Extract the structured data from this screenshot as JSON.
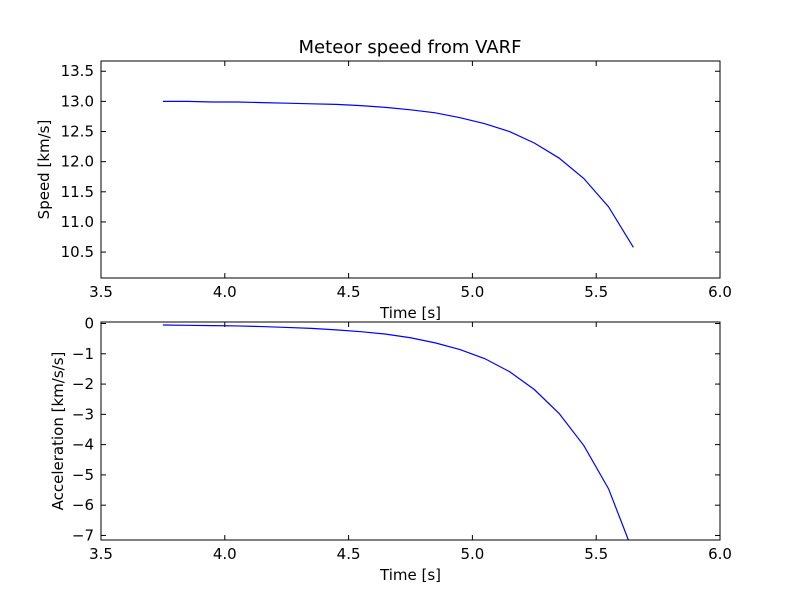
{
  "figure": {
    "title": "Meteor speed from  VARF"
  },
  "colors": {
    "line": "#0000ff",
    "frame": "#000000",
    "background": "#ffffff"
  },
  "chart_data": [
    {
      "type": "line",
      "title": "Meteor speed from  VARF",
      "xlabel": "Time [s]",
      "ylabel": "Speed [km/s]",
      "xlim": [
        3.5,
        6.0
      ],
      "ylim": [
        10.07,
        13.67
      ],
      "xticks": [
        3.5,
        4.0,
        4.5,
        5.0,
        5.5,
        6.0
      ],
      "xtick_labels": [
        "3.5",
        "4.0",
        "4.5",
        "5.0",
        "5.5",
        "6.0"
      ],
      "yticks": [
        10.5,
        11.0,
        11.5,
        12.0,
        12.5,
        13.0,
        13.5
      ],
      "ytick_labels": [
        "10.5",
        "11.0",
        "11.5",
        "12.0",
        "12.5",
        "13.0",
        "13.5"
      ],
      "grid": false,
      "series": [
        {
          "x": [
            3.75,
            3.85,
            3.95,
            4.05,
            4.15,
            4.25,
            4.35,
            4.45,
            4.55,
            4.65,
            4.75,
            4.85,
            4.95,
            5.05,
            5.15,
            5.25,
            5.35,
            5.45,
            5.55,
            5.65
          ],
          "values": [
            13.0,
            13.0,
            12.99,
            12.99,
            12.98,
            12.97,
            12.96,
            12.95,
            12.93,
            12.9,
            12.86,
            12.81,
            12.73,
            12.63,
            12.5,
            12.31,
            12.06,
            11.72,
            11.25,
            10.58
          ]
        }
      ]
    },
    {
      "type": "line",
      "title": "",
      "xlabel": "Time [s]",
      "ylabel": "Acceleration [km/s/s]",
      "xlim": [
        3.5,
        6.0
      ],
      "ylim": [
        -7.15,
        0.05
      ],
      "xticks": [
        3.5,
        4.0,
        4.5,
        5.0,
        5.5,
        6.0
      ],
      "xtick_labels": [
        "3.5",
        "4.0",
        "4.5",
        "5.0",
        "5.5",
        "6.0"
      ],
      "yticks": [
        0,
        -1,
        -2,
        -3,
        -4,
        -5,
        -6,
        -7
      ],
      "ytick_labels": [
        "0",
        "−1",
        "−2",
        "−3",
        "−4",
        "−5",
        "−6",
        "−7"
      ],
      "grid": false,
      "series": [
        {
          "x": [
            3.75,
            3.85,
            3.95,
            4.05,
            4.15,
            4.25,
            4.35,
            4.45,
            4.55,
            4.65,
            4.75,
            4.85,
            4.95,
            5.05,
            5.15,
            5.25,
            5.35,
            5.45,
            5.55,
            5.63
          ],
          "values": [
            -0.05,
            -0.06,
            -0.07,
            -0.08,
            -0.1,
            -0.13,
            -0.16,
            -0.21,
            -0.27,
            -0.35,
            -0.47,
            -0.64,
            -0.86,
            -1.16,
            -1.59,
            -2.18,
            -2.97,
            -4.03,
            -5.46,
            -7.15
          ]
        }
      ]
    }
  ]
}
